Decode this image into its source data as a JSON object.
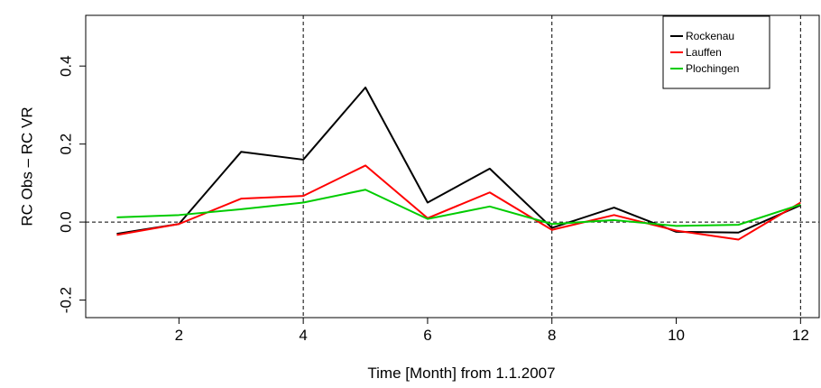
{
  "chart_data": {
    "type": "line",
    "title": "",
    "xlabel": "Time [Month] from 1.1.2007",
    "ylabel": "RC Obs – RC VR",
    "xlim": [
      0.5,
      12.3
    ],
    "ylim": [
      -0.245,
      0.53
    ],
    "xticks": [
      2,
      4,
      6,
      8,
      10,
      12
    ],
    "yticks": [
      -0.2,
      0.0,
      0.2,
      0.4
    ],
    "xtick_labels": [
      "2",
      "4",
      "6",
      "8",
      "10",
      "12"
    ],
    "ytick_labels": [
      "-0.2",
      "0.0",
      "0.2",
      "0.4"
    ],
    "vlines": [
      4,
      8,
      12
    ],
    "hline": 0,
    "legend_position": "top-right",
    "x": [
      1,
      2,
      3,
      4,
      5,
      6,
      7,
      8,
      9,
      10,
      11,
      12
    ],
    "series": [
      {
        "name": "Rockenau",
        "color": "#000000",
        "values": [
          -0.03,
          -0.005,
          0.18,
          0.16,
          0.345,
          0.05,
          0.137,
          -0.015,
          0.037,
          -0.025,
          -0.027,
          0.043
        ]
      },
      {
        "name": "Lauffen",
        "color": "#ff0000",
        "values": [
          -0.033,
          -0.005,
          0.06,
          0.067,
          0.145,
          0.01,
          0.076,
          -0.02,
          0.018,
          -0.022,
          -0.045,
          0.05
        ]
      },
      {
        "name": "Plochingen",
        "color": "#00cc00",
        "values": [
          0.012,
          0.018,
          0.033,
          0.05,
          0.083,
          0.008,
          0.04,
          -0.005,
          0.005,
          -0.01,
          -0.007,
          0.045
        ]
      }
    ]
  }
}
